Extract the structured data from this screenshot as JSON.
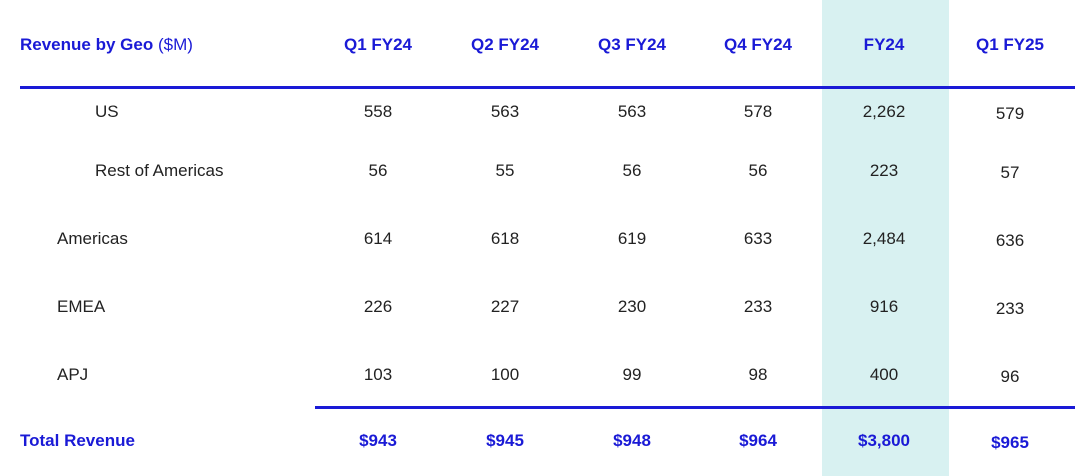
{
  "header": {
    "title": "Revenue by Geo",
    "unit": "($M)"
  },
  "columns": [
    "Q1 FY24",
    "Q2 FY24",
    "Q3 FY24",
    "Q4 FY24",
    "FY24",
    "Q1 FY25"
  ],
  "rows": [
    {
      "label": "US",
      "values": [
        "558",
        "563",
        "563",
        "578",
        "2,262",
        "579"
      ]
    },
    {
      "label": "Rest of Americas",
      "values": [
        "56",
        "55",
        "56",
        "56",
        "223",
        "57"
      ]
    },
    {
      "label": "Americas",
      "values": [
        "614",
        "618",
        "619",
        "633",
        "2,484",
        "636"
      ]
    },
    {
      "label": "EMEA",
      "values": [
        "226",
        "227",
        "230",
        "233",
        "916",
        "233"
      ]
    },
    {
      "label": "APJ",
      "values": [
        "103",
        "100",
        "99",
        "98",
        "400",
        "96"
      ]
    }
  ],
  "total": {
    "label": "Total Revenue",
    "values": [
      "$943",
      "$945",
      "$948",
      "$964",
      "$3,800",
      "$965"
    ]
  }
}
